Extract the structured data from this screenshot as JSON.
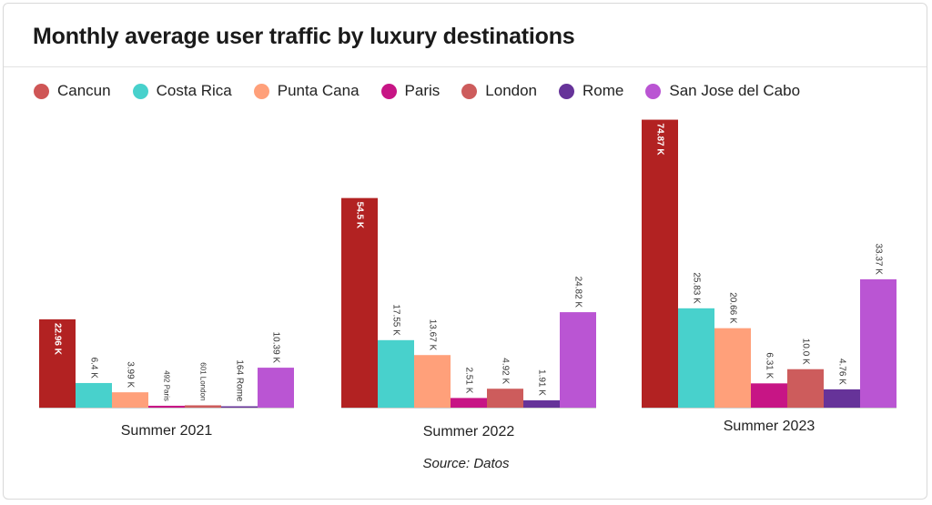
{
  "title": "Monthly average user traffic by luxury destinations",
  "source": "Source: Datos",
  "legend": [
    {
      "name": "Cancun",
      "color": "#cf5656"
    },
    {
      "name": "Costa Rica",
      "color": "#48d1cc"
    },
    {
      "name": "Punta Cana",
      "color": "#ffa07a"
    },
    {
      "name": "Paris",
      "color": "#c71585"
    },
    {
      "name": "London",
      "color": "#cd5c5c"
    },
    {
      "name": "Rome",
      "color": "#663399"
    },
    {
      "name": "San Jose del Cabo",
      "color": "#ba55d3"
    }
  ],
  "chart_data": {
    "type": "bar",
    "categories": [
      "Summer 2021",
      "Summer 2022",
      "Summer 2023"
    ],
    "series": [
      {
        "name": "Cancun",
        "color": "#b22222",
        "values": [
          22960,
          54500,
          74870
        ],
        "labels": [
          "22.96 K",
          "54.5 K",
          "74.87 K"
        ]
      },
      {
        "name": "Costa Rica",
        "color": "#48d1cc",
        "values": [
          6400,
          17550,
          25830
        ],
        "labels": [
          "6.4 K",
          "17.55 K",
          "25.83 K"
        ]
      },
      {
        "name": "Punta Cana",
        "color": "#ffa07a",
        "values": [
          3990,
          13670,
          20660
        ],
        "labels": [
          "3.99 K",
          "13.67 K",
          "20.66 K"
        ]
      },
      {
        "name": "Paris",
        "color": "#c71585",
        "values": [
          492,
          2510,
          6310
        ],
        "labels": [
          "492 Paris",
          "2.51 K",
          "6.31 K"
        ]
      },
      {
        "name": "London",
        "color": "#cd5c5c",
        "values": [
          601,
          4920,
          10000
        ],
        "labels": [
          "601 London",
          "4.92 K",
          "10.0 K"
        ]
      },
      {
        "name": "Rome",
        "color": "#663399",
        "values": [
          164,
          1910,
          4760
        ],
        "labels": [
          "164 Rome",
          "1.91 K",
          "4.76 K"
        ]
      },
      {
        "name": "San Jose del Cabo",
        "color": "#ba55d3",
        "values": [
          10390,
          24820,
          33370
        ],
        "labels": [
          "10.39 K",
          "24.82 K",
          "33.37 K"
        ]
      }
    ],
    "label_inside": [
      [
        true,
        true,
        true
      ],
      [
        false,
        false,
        false
      ],
      [
        false,
        false,
        false
      ],
      [
        false,
        false,
        false
      ],
      [
        false,
        false,
        false
      ],
      [
        false,
        false,
        false
      ],
      [
        false,
        false,
        false
      ]
    ],
    "ylim": [
      0,
      75000
    ],
    "grid": false,
    "legend_position": "top-left"
  }
}
